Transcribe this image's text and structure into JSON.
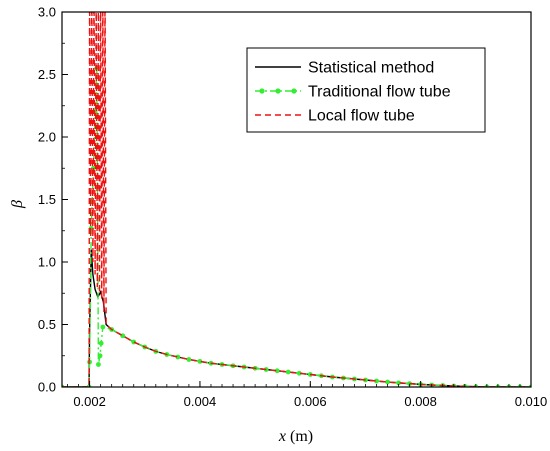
{
  "chart_data": {
    "type": "line",
    "xlabel_var": "x",
    "xlabel_unit": " (m)",
    "ylabel": "β",
    "xlim": [
      0.0015,
      0.01
    ],
    "ylim": [
      0.0,
      3.0
    ],
    "x_ticks": [
      0.002,
      0.004,
      0.006,
      0.008,
      0.01
    ],
    "x_tick_labels": [
      "0.002",
      "0.004",
      "0.006",
      "0.008",
      "0.010"
    ],
    "y_ticks": [
      0.0,
      0.5,
      1.0,
      1.5,
      2.0,
      2.5,
      3.0
    ],
    "y_tick_labels": [
      "0.0",
      "0.5",
      "1.0",
      "1.5",
      "2.0",
      "2.5",
      "3.0"
    ],
    "grid": false,
    "legend_position": "top-right",
    "series": [
      {
        "name": "Statistical method",
        "color": "#000000",
        "style": "solid",
        "x": [
          0.0015,
          0.00199,
          0.002,
          0.00203,
          0.00206,
          0.0021,
          0.00215,
          0.0022,
          0.00225,
          0.0023,
          0.0024,
          0.0026,
          0.0028,
          0.003,
          0.0032,
          0.0034,
          0.0036,
          0.0038,
          0.004,
          0.0042,
          0.0044,
          0.0046,
          0.0048,
          0.005,
          0.0052,
          0.0054,
          0.0056,
          0.0058,
          0.006,
          0.0062,
          0.0064,
          0.0066,
          0.0068,
          0.007,
          0.0072,
          0.0074,
          0.0076,
          0.0078,
          0.008,
          0.0082,
          0.0084,
          0.0086,
          0.0088,
          0.009,
          0.0092,
          0.0094,
          0.0096,
          0.0098,
          0.01
        ],
        "y": [
          0.0,
          0.0,
          0.45,
          1.1,
          0.9,
          0.78,
          0.72,
          0.76,
          0.68,
          0.5,
          0.46,
          0.41,
          0.36,
          0.32,
          0.285,
          0.26,
          0.24,
          0.22,
          0.205,
          0.19,
          0.18,
          0.17,
          0.16,
          0.15,
          0.14,
          0.13,
          0.12,
          0.11,
          0.1,
          0.09,
          0.08,
          0.072,
          0.064,
          0.056,
          0.048,
          0.04,
          0.033,
          0.027,
          0.021,
          0.016,
          0.012,
          0.008,
          0.005,
          0.002,
          0.0,
          0.0,
          0.0,
          0.0,
          0.0
        ]
      },
      {
        "name": "Traditional flow tube",
        "color": "#33ee33",
        "style": "dashdot",
        "marker": "circle",
        "x": [
          0.0015,
          0.00199,
          0.002,
          0.00203,
          0.00207,
          0.0021,
          0.00213,
          0.00216,
          0.00219,
          0.00221,
          0.00224,
          0.0024,
          0.0026,
          0.0028,
          0.003,
          0.0032,
          0.0034,
          0.0036,
          0.0038,
          0.004,
          0.0042,
          0.0044,
          0.0046,
          0.0048,
          0.005,
          0.0052,
          0.0054,
          0.0056,
          0.0058,
          0.006,
          0.0062,
          0.0064,
          0.0066,
          0.0068,
          0.007,
          0.0072,
          0.0074,
          0.0076,
          0.0078,
          0.008,
          0.0082,
          0.0084,
          0.0086,
          0.0088,
          0.009,
          0.0092,
          0.0094,
          0.0096,
          0.0098,
          0.01
        ],
        "y": [
          0.0,
          0.0,
          0.2,
          1.27,
          1.75,
          2.2,
          2.55,
          0.18,
          0.25,
          0.35,
          0.48,
          0.46,
          0.41,
          0.36,
          0.32,
          0.285,
          0.26,
          0.24,
          0.22,
          0.205,
          0.19,
          0.18,
          0.17,
          0.16,
          0.15,
          0.14,
          0.13,
          0.12,
          0.11,
          0.1,
          0.09,
          0.08,
          0.072,
          0.064,
          0.056,
          0.048,
          0.04,
          0.033,
          0.027,
          0.021,
          0.016,
          0.012,
          0.008,
          0.005,
          0.002,
          0.0,
          0.0,
          0.0,
          0.0,
          0.0
        ]
      },
      {
        "name": "Local flow tube",
        "color": "#ee1111",
        "style": "dashed",
        "x": [
          0.0015,
          0.00199,
          0.002,
          0.00202,
          0.00204,
          0.00206,
          0.00208,
          0.0021,
          0.00212,
          0.00214,
          0.00216,
          0.00218,
          0.0022,
          0.00222,
          0.00224,
          0.00226,
          0.00228,
          0.0023,
          0.0024,
          0.0026,
          0.0028,
          0.003,
          0.0032,
          0.0034,
          0.0036,
          0.0038,
          0.004,
          0.0042,
          0.0044,
          0.0046,
          0.0048,
          0.005,
          0.0052,
          0.0054,
          0.0056,
          0.0058,
          0.006,
          0.0062,
          0.0064,
          0.0066,
          0.0068,
          0.007,
          0.0072,
          0.0074,
          0.0076,
          0.0078,
          0.008,
          0.0082,
          0.0084,
          0.0086,
          0.0088,
          0.009,
          0.0092,
          0.0094,
          0.0096,
          0.0098,
          0.01
        ],
        "y": [
          0.0,
          0.0,
          3.2,
          1.2,
          3.2,
          1.0,
          3.2,
          0.9,
          3.2,
          0.8,
          3.2,
          0.75,
          3.2,
          0.7,
          3.2,
          0.6,
          3.2,
          0.5,
          0.46,
          0.41,
          0.36,
          0.32,
          0.285,
          0.26,
          0.24,
          0.22,
          0.205,
          0.19,
          0.18,
          0.17,
          0.16,
          0.15,
          0.14,
          0.13,
          0.12,
          0.11,
          0.1,
          0.09,
          0.08,
          0.072,
          0.064,
          0.056,
          0.048,
          0.04,
          0.033,
          0.027,
          0.021,
          0.016,
          0.012,
          0.008,
          0.005,
          0.002,
          0.0,
          0.0,
          0.0,
          0.0,
          0.0
        ]
      }
    ]
  }
}
